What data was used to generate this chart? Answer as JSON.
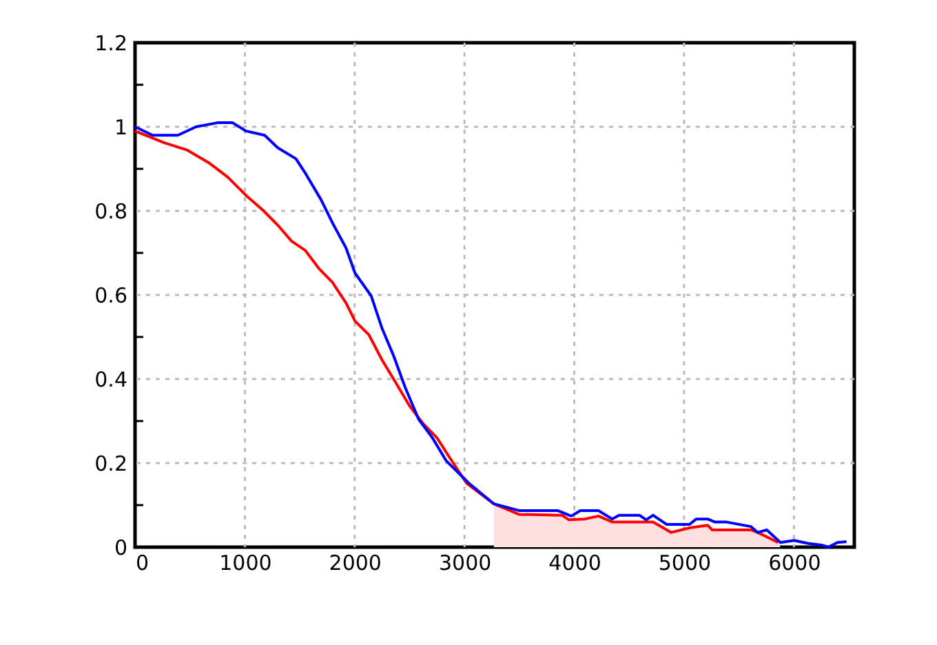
{
  "chart_data": {
    "type": "line",
    "xlim": [
      0,
      6550
    ],
    "ylim": [
      0,
      1.2
    ],
    "xticks": [
      0,
      1000,
      2000,
      3000,
      4000,
      5000,
      6000
    ],
    "yticks": [
      0,
      {
        "value": 0.1,
        "label": null
      },
      0.2,
      {
        "value": 0.3,
        "label": null
      },
      0.4,
      {
        "value": 0.5,
        "label": null
      },
      0.6,
      {
        "value": 0.7,
        "label": null
      },
      0.8,
      {
        "value": 0.9,
        "label": null
      },
      1,
      {
        "value": 1.1,
        "label": null
      },
      1.2
    ],
    "grid": true,
    "line_style": "solid",
    "marker": "none",
    "series": [
      {
        "type": "area",
        "color": "#ffe0e0",
        "x": [
          3268,
          3496,
          3889,
          3951,
          4096,
          4220,
          4345,
          4717,
          4883,
          5049,
          5215,
          5256,
          5608,
          5670,
          5857,
          5877
        ],
        "values": [
          0.103,
          0.078,
          0.076,
          0.065,
          0.067,
          0.074,
          0.06,
          0.06,
          0.035,
          0.046,
          0.052,
          0.041,
          0.041,
          0.035,
          0.011,
          0
        ]
      },
      {
        "color": "#ff0000",
        "x": [
          0,
          265,
          472,
          680,
          845,
          1010,
          1175,
          1300,
          1425,
          1550,
          1674,
          1797,
          1921,
          2003,
          2130,
          2250,
          2375,
          2500,
          2625,
          2750,
          2870,
          3020,
          3268,
          3496,
          3889,
          3951,
          4096,
          4220,
          4345,
          4717,
          4883,
          5049,
          5215,
          5256,
          5608,
          5670,
          5857
        ],
        "values": [
          0.99,
          0.962,
          0.945,
          0.913,
          0.88,
          0.837,
          0.799,
          0.766,
          0.728,
          0.706,
          0.663,
          0.63,
          0.581,
          0.538,
          0.505,
          0.445,
          0.391,
          0.336,
          0.293,
          0.26,
          0.211,
          0.152,
          0.103,
          0.078,
          0.076,
          0.065,
          0.067,
          0.074,
          0.06,
          0.06,
          0.035,
          0.046,
          0.052,
          0.041,
          0.041,
          0.035,
          0.011
        ]
      },
      {
        "color": "#0000ff",
        "x": [
          0,
          160,
          390,
          555,
          760,
          886,
          1010,
          1180,
          1300,
          1465,
          1550,
          1695,
          1797,
          1921,
          2003,
          2150,
          2250,
          2355,
          2460,
          2583,
          2708,
          2832,
          3040,
          3268,
          3496,
          3848,
          3972,
          4055,
          4220,
          4345,
          4407,
          4593,
          4655,
          4717,
          4842,
          5049,
          5111,
          5215,
          5277,
          5380,
          5608,
          5670,
          5753,
          5877,
          6002,
          6126,
          6251,
          6313,
          6396,
          6479
        ],
        "values": [
          1.0,
          0.98,
          0.98,
          1.0,
          1.01,
          1.01,
          0.99,
          0.98,
          0.95,
          0.924,
          0.89,
          0.826,
          0.772,
          0.712,
          0.652,
          0.598,
          0.52,
          0.455,
          0.38,
          0.304,
          0.26,
          0.206,
          0.152,
          0.103,
          0.087,
          0.087,
          0.074,
          0.087,
          0.087,
          0.067,
          0.076,
          0.076,
          0.065,
          0.076,
          0.054,
          0.054,
          0.067,
          0.067,
          0.06,
          0.06,
          0.049,
          0.035,
          0.041,
          0.011,
          0.016,
          0.009,
          0.005,
          0,
          0.011,
          0.013
        ]
      }
    ]
  }
}
